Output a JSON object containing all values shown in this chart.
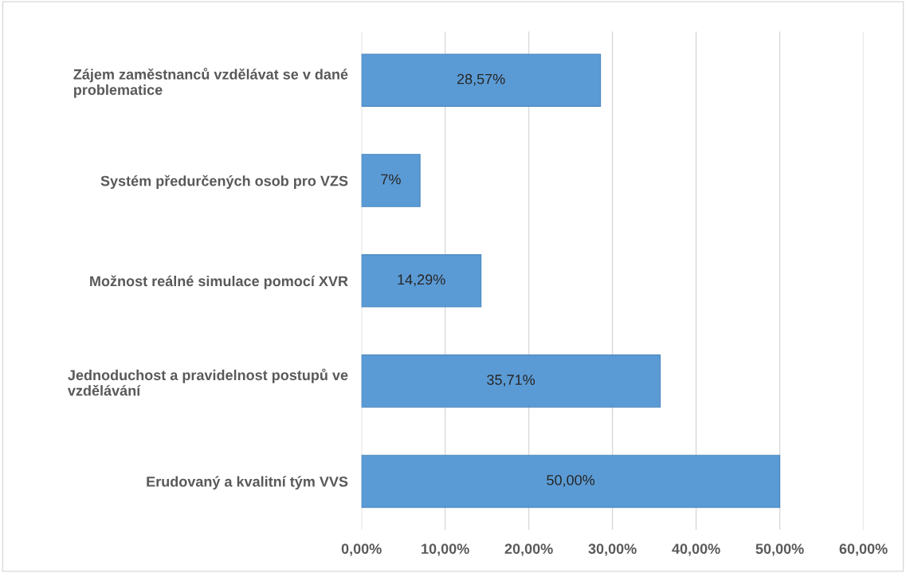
{
  "chart_data": {
    "type": "bar",
    "orientation": "horizontal",
    "categories": [
      "Zájem zaměstnanců vzdělávat se v dané problematice",
      "Systém předurčených osob pro VZS",
      "Možnost reálné simulace pomocí XVR",
      "Jednoduchost a pravidelnost postupů ve vzdělávání",
      "Erudovaný a kvalitní tým VVS"
    ],
    "values": [
      28.57,
      7,
      14.29,
      35.71,
      50
    ],
    "value_labels": [
      "28,57%",
      "7%",
      "14,29%",
      "35,71%",
      "50,00%"
    ],
    "color": "#5b9bd5",
    "xlim": [
      0,
      60
    ],
    "xticks": [
      {
        "value": 0,
        "label": "0,00%"
      },
      {
        "value": 10,
        "label": "10,00%"
      },
      {
        "value": 20,
        "label": "20,00%"
      },
      {
        "value": 30,
        "label": "30,00%"
      },
      {
        "value": 40,
        "label": "40,00%"
      },
      {
        "value": 50,
        "label": "50,00%"
      },
      {
        "value": 60,
        "label": "60,00%"
      }
    ],
    "grid": "x",
    "legend": false
  }
}
